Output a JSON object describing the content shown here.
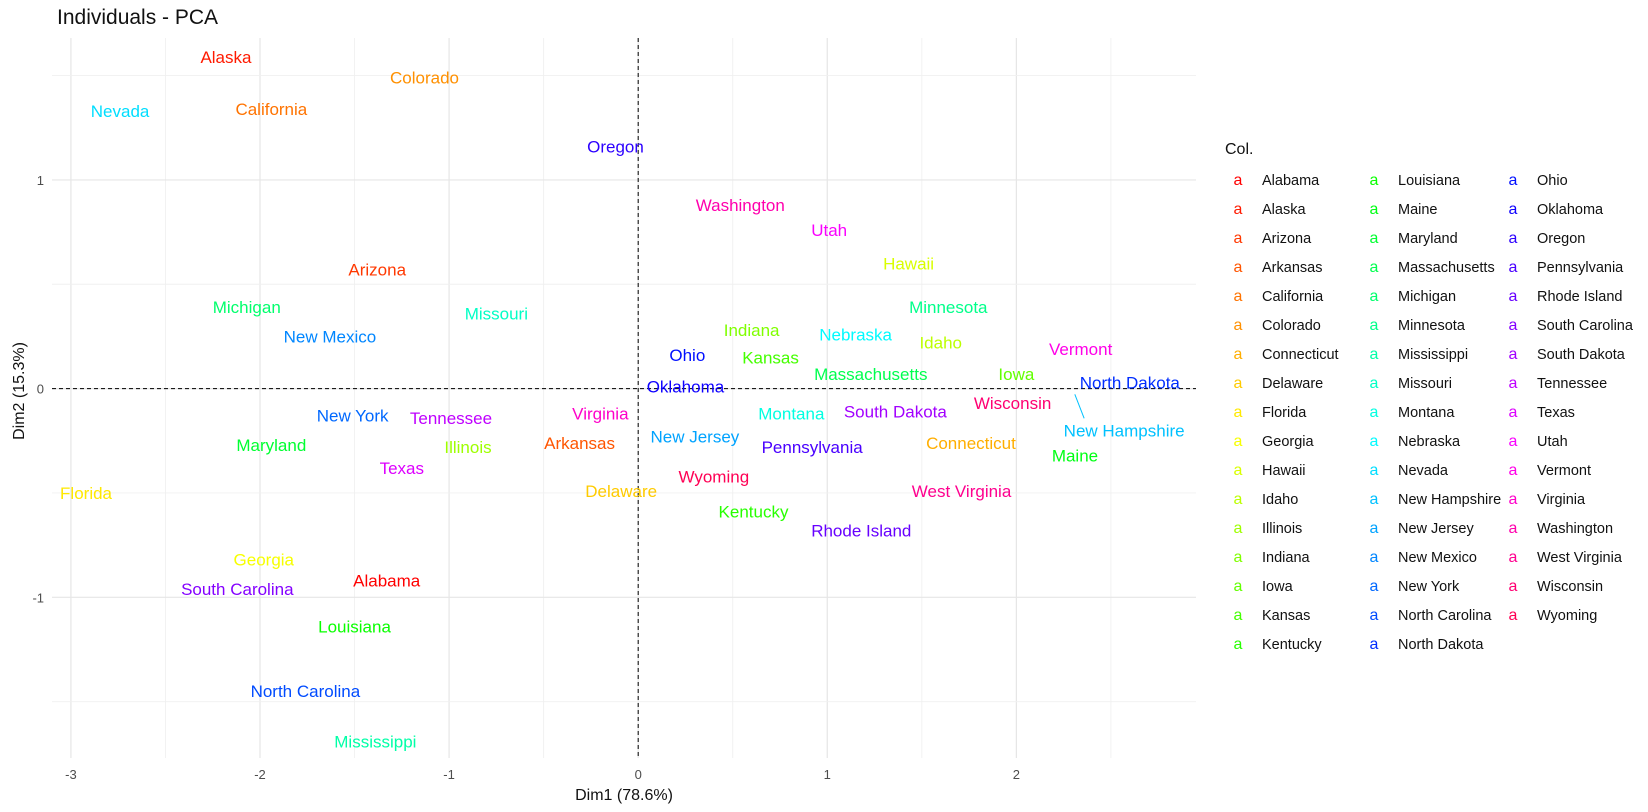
{
  "chart_data": {
    "type": "scatter",
    "title": "Individuals - PCA",
    "xlabel": "Dim1 (78.6%)",
    "ylabel": "Dim2 (15.3%)",
    "xlim": [
      -3.1,
      2.95
    ],
    "ylim": [
      -1.77,
      1.68
    ],
    "xticks": [
      -3,
      -2,
      -1,
      0,
      1,
      2
    ],
    "yticks": [
      -1,
      0,
      1
    ],
    "grid": true,
    "reference_lines": {
      "x": 0,
      "y": 0,
      "style": "dashed"
    },
    "legend_title": "Col.",
    "legend_position": "right",
    "legend_key_glyph": "a",
    "points": [
      {
        "label": "Alabama",
        "x": -1.33,
        "y": -0.92,
        "color": "#FF0000"
      },
      {
        "label": "Alaska",
        "x": -2.18,
        "y": 1.59,
        "color": "#FF1A00"
      },
      {
        "label": "Arizona",
        "x": -1.38,
        "y": 0.57,
        "color": "#FF3800"
      },
      {
        "label": "Arkansas",
        "x": -0.31,
        "y": -0.26,
        "color": "#FF5500"
      },
      {
        "label": "California",
        "x": -1.94,
        "y": 1.34,
        "color": "#FF7300"
      },
      {
        "label": "Colorado",
        "x": -1.13,
        "y": 1.49,
        "color": "#FF9000"
      },
      {
        "label": "Connecticut",
        "x": 1.76,
        "y": -0.26,
        "color": "#FFAE00"
      },
      {
        "label": "Delaware",
        "x": -0.09,
        "y": -0.49,
        "color": "#FFCB00"
      },
      {
        "label": "Florida",
        "x": -2.92,
        "y": -0.5,
        "color": "#FFE900"
      },
      {
        "label": "Georgia",
        "x": -1.98,
        "y": -0.82,
        "color": "#F7FF00"
      },
      {
        "label": "Hawaii",
        "x": 1.43,
        "y": 0.6,
        "color": "#D9FF00"
      },
      {
        "label": "Idaho",
        "x": 1.6,
        "y": 0.22,
        "color": "#BCFF00"
      },
      {
        "label": "Illinois",
        "x": -0.9,
        "y": -0.28,
        "color": "#9EFF00"
      },
      {
        "label": "Indiana",
        "x": 0.6,
        "y": 0.28,
        "color": "#80FF00"
      },
      {
        "label": "Iowa",
        "x": 2.0,
        "y": 0.07,
        "color": "#62FF00"
      },
      {
        "label": "Kansas",
        "x": 0.7,
        "y": 0.15,
        "color": "#45FF00"
      },
      {
        "label": "Kentucky",
        "x": 0.61,
        "y": -0.59,
        "color": "#27FF00"
      },
      {
        "label": "Louisiana",
        "x": -1.5,
        "y": -1.14,
        "color": "#09FF00"
      },
      {
        "label": "Maine",
        "x": 2.31,
        "y": -0.32,
        "color": "#00FF14"
      },
      {
        "label": "Maryland",
        "x": -1.94,
        "y": -0.27,
        "color": "#00FF31"
      },
      {
        "label": "Massachusetts",
        "x": 1.23,
        "y": 0.07,
        "color": "#00FF4F"
      },
      {
        "label": "Michigan",
        "x": -2.07,
        "y": 0.39,
        "color": "#00FF6C"
      },
      {
        "label": "Minnesota",
        "x": 1.64,
        "y": 0.39,
        "color": "#00FF8A"
      },
      {
        "label": "Mississippi",
        "x": -1.39,
        "y": -1.69,
        "color": "#00FFA7"
      },
      {
        "label": "Missouri",
        "x": -0.75,
        "y": 0.36,
        "color": "#00FFC5"
      },
      {
        "label": "Montana",
        "x": 0.81,
        "y": -0.12,
        "color": "#00FFE2"
      },
      {
        "label": "Nebraska",
        "x": 1.15,
        "y": 0.26,
        "color": "#00FBFF"
      },
      {
        "label": "Nevada",
        "x": -2.74,
        "y": 1.33,
        "color": "#00DEFF"
      },
      {
        "label": "New Hampshire",
        "x": 2.57,
        "y": -0.2,
        "color": "#00C1FF"
      },
      {
        "label": "New Jersey",
        "x": 0.3,
        "y": -0.23,
        "color": "#00A3FF"
      },
      {
        "label": "New Mexico",
        "x": -1.63,
        "y": 0.25,
        "color": "#0086FF"
      },
      {
        "label": "New York",
        "x": -1.51,
        "y": -0.13,
        "color": "#0068FF"
      },
      {
        "label": "North Carolina",
        "x": -1.76,
        "y": -1.45,
        "color": "#004BFF"
      },
      {
        "label": "North Dakota",
        "x": 2.6,
        "y": 0.03,
        "color": "#002DFF"
      },
      {
        "label": "Ohio",
        "x": 0.26,
        "y": 0.16,
        "color": "#000FFF"
      },
      {
        "label": "Oklahoma",
        "x": 0.25,
        "y": 0.01,
        "color": "#0E00FF"
      },
      {
        "label": "Oregon",
        "x": -0.12,
        "y": 1.16,
        "color": "#2C00FF"
      },
      {
        "label": "Pennsylvania",
        "x": 0.92,
        "y": -0.28,
        "color": "#4900FF"
      },
      {
        "label": "Rhode Island",
        "x": 1.18,
        "y": -0.68,
        "color": "#6700FF"
      },
      {
        "label": "South Carolina",
        "x": -2.12,
        "y": -0.96,
        "color": "#8400FF"
      },
      {
        "label": "South Dakota",
        "x": 1.36,
        "y": -0.11,
        "color": "#A200FF"
      },
      {
        "label": "Tennessee",
        "x": -0.99,
        "y": -0.14,
        "color": "#BF00FF"
      },
      {
        "label": "Texas",
        "x": -1.25,
        "y": -0.38,
        "color": "#DD00FF"
      },
      {
        "label": "Utah",
        "x": 1.01,
        "y": 0.76,
        "color": "#FA00FF"
      },
      {
        "label": "Vermont",
        "x": 2.34,
        "y": 0.19,
        "color": "#FF00E8"
      },
      {
        "label": "Virginia",
        "x": -0.2,
        "y": -0.12,
        "color": "#FF00CA"
      },
      {
        "label": "Washington",
        "x": 0.54,
        "y": 0.88,
        "color": "#FF00AD"
      },
      {
        "label": "West Virginia",
        "x": 1.71,
        "y": -0.49,
        "color": "#FF008F"
      },
      {
        "label": "Wisconsin",
        "x": 1.98,
        "y": -0.07,
        "color": "#FF0072"
      },
      {
        "label": "Wyoming",
        "x": 0.4,
        "y": -0.42,
        "color": "#FF0054"
      }
    ]
  }
}
